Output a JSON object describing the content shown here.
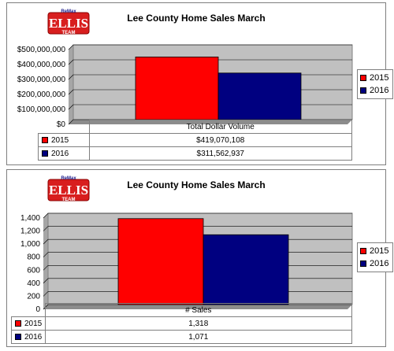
{
  "colors": {
    "series_2015": "#ff0000",
    "series_2016": "#000080",
    "plot_bg": "#c0c0c0"
  },
  "chart_data": [
    {
      "type": "bar",
      "title": "Lee County Home Sales March",
      "categories": [
        "Total Dollar Volume"
      ],
      "series": [
        {
          "name": "2015",
          "values": [
            419070108
          ],
          "table_value": "$419,070,108"
        },
        {
          "name": "2016",
          "values": [
            311562937
          ],
          "table_value": "$311,562,937"
        }
      ],
      "ylim": [
        0,
        500000000
      ],
      "yticks": [
        0,
        100000000,
        200000000,
        300000000,
        400000000,
        500000000
      ],
      "ytick_labels": [
        "$0",
        "$100,000,000",
        "$200,000,000",
        "$300,000,000",
        "$400,000,000",
        "$500,000,000"
      ],
      "grid": true,
      "legend_position": "right"
    },
    {
      "type": "bar",
      "title": "Lee County Home Sales March",
      "categories": [
        "# Sales"
      ],
      "series": [
        {
          "name": "2015",
          "values": [
            1318
          ],
          "table_value": "1,318"
        },
        {
          "name": "2016",
          "values": [
            1071
          ],
          "table_value": "1,071"
        }
      ],
      "ylim": [
        0,
        1400
      ],
      "yticks": [
        0,
        200,
        400,
        600,
        800,
        1000,
        1200,
        1400
      ],
      "ytick_labels": [
        "0",
        "200",
        "400",
        "600",
        "800",
        "1,000",
        "1,200",
        "1,400"
      ],
      "grid": true,
      "legend_position": "right"
    }
  ],
  "logo": {
    "top_text": "ReMax",
    "main_text": "ELLIS",
    "bottom_text": "TEAM"
  }
}
